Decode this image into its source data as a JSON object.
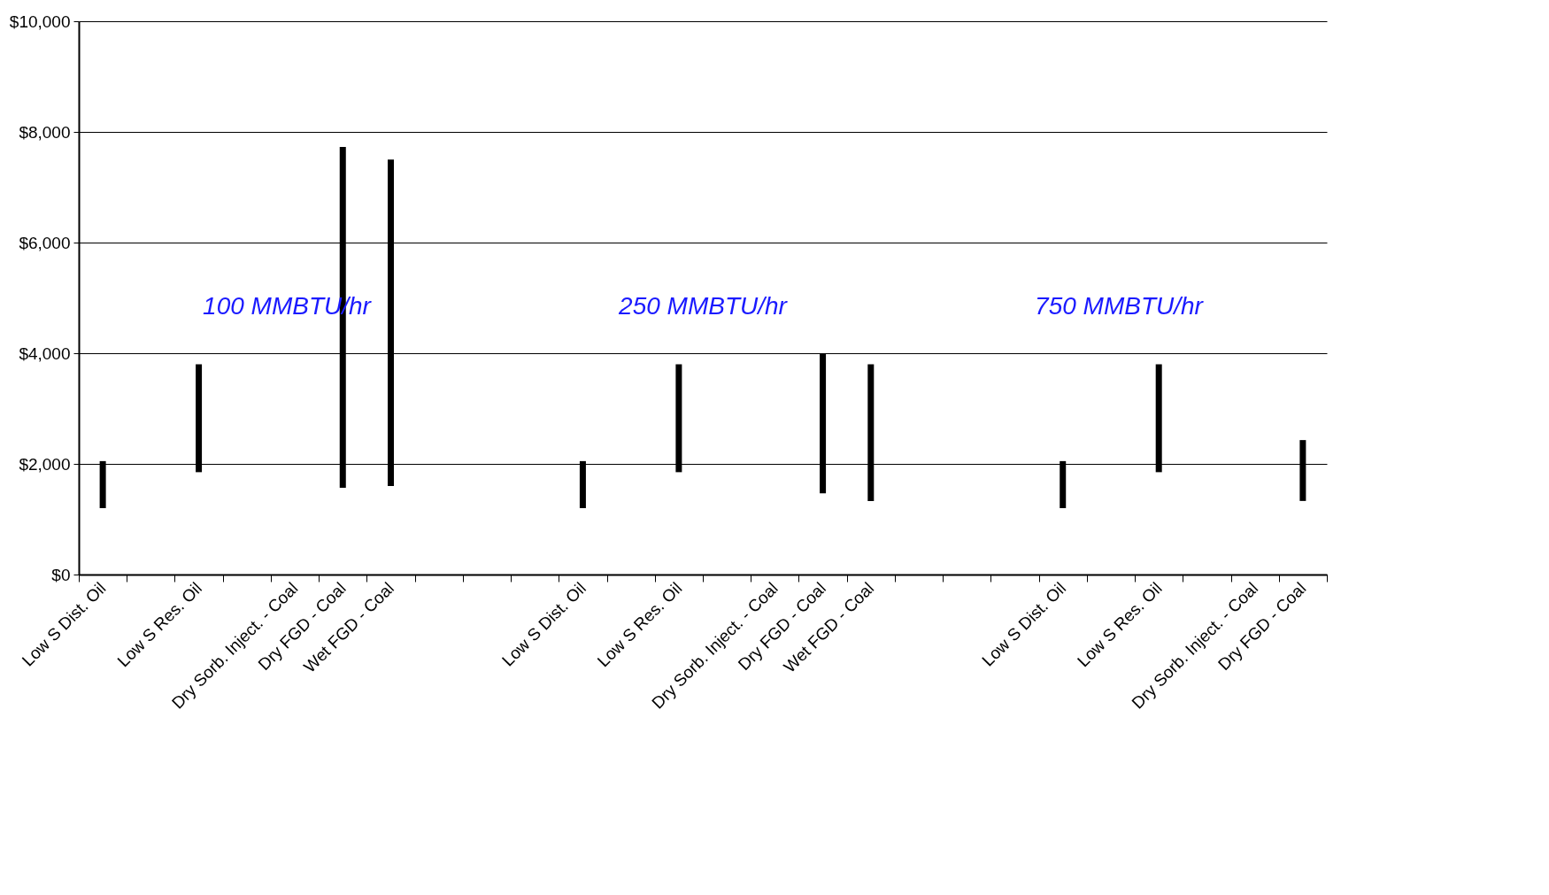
{
  "chart_data": {
    "type": "bar",
    "categories": [
      "Low S Dist. Oil",
      null,
      "Low S Res. Oil",
      null,
      "Dry Sorb. Inject. - Coal",
      "Dry FGD - Coal",
      "Wet FGD - Coal",
      null,
      null,
      null,
      "Low S Dist. Oil",
      null,
      "Low S Res. Oil",
      null,
      "Dry Sorb. Inject. - Coal",
      "Dry FGD - Coal",
      "Wet FGD - Coal",
      null,
      null,
      null,
      "Low S Dist. Oil",
      null,
      "Low S Res. Oil",
      null,
      "Dry Sorb. Inject. - Coal",
      "Dry FGD - Coal"
    ],
    "base": [
      1200,
      null,
      1850,
      null,
      null,
      1570,
      1600,
      null,
      null,
      null,
      1200,
      null,
      1850,
      null,
      null,
      1470,
      1330,
      null,
      null,
      null,
      1200,
      null,
      1850,
      null,
      null,
      1330
    ],
    "values": [
      850,
      null,
      1950,
      null,
      null,
      6160,
      5900,
      null,
      null,
      null,
      850,
      null,
      1950,
      null,
      null,
      2530,
      2470,
      null,
      null,
      null,
      850,
      null,
      1950,
      null,
      null,
      1100
    ],
    "color": "#000000",
    "ylim": [
      0,
      10000
    ],
    "yticks": [
      {
        "value": 0,
        "label": "$0"
      },
      {
        "value": 2000,
        "label": "$2,000"
      },
      {
        "value": 4000,
        "label": "$4,000"
      },
      {
        "value": 6000,
        "label": "$6,000"
      },
      {
        "value": 8000,
        "label": "$8,000"
      },
      {
        "value": 10000,
        "label": "$10,000"
      }
    ],
    "grid": "y",
    "annotations": [
      "100 MMBTU/hr",
      "250 MMBTU/hr",
      "750 MMBTU/hr"
    ]
  }
}
